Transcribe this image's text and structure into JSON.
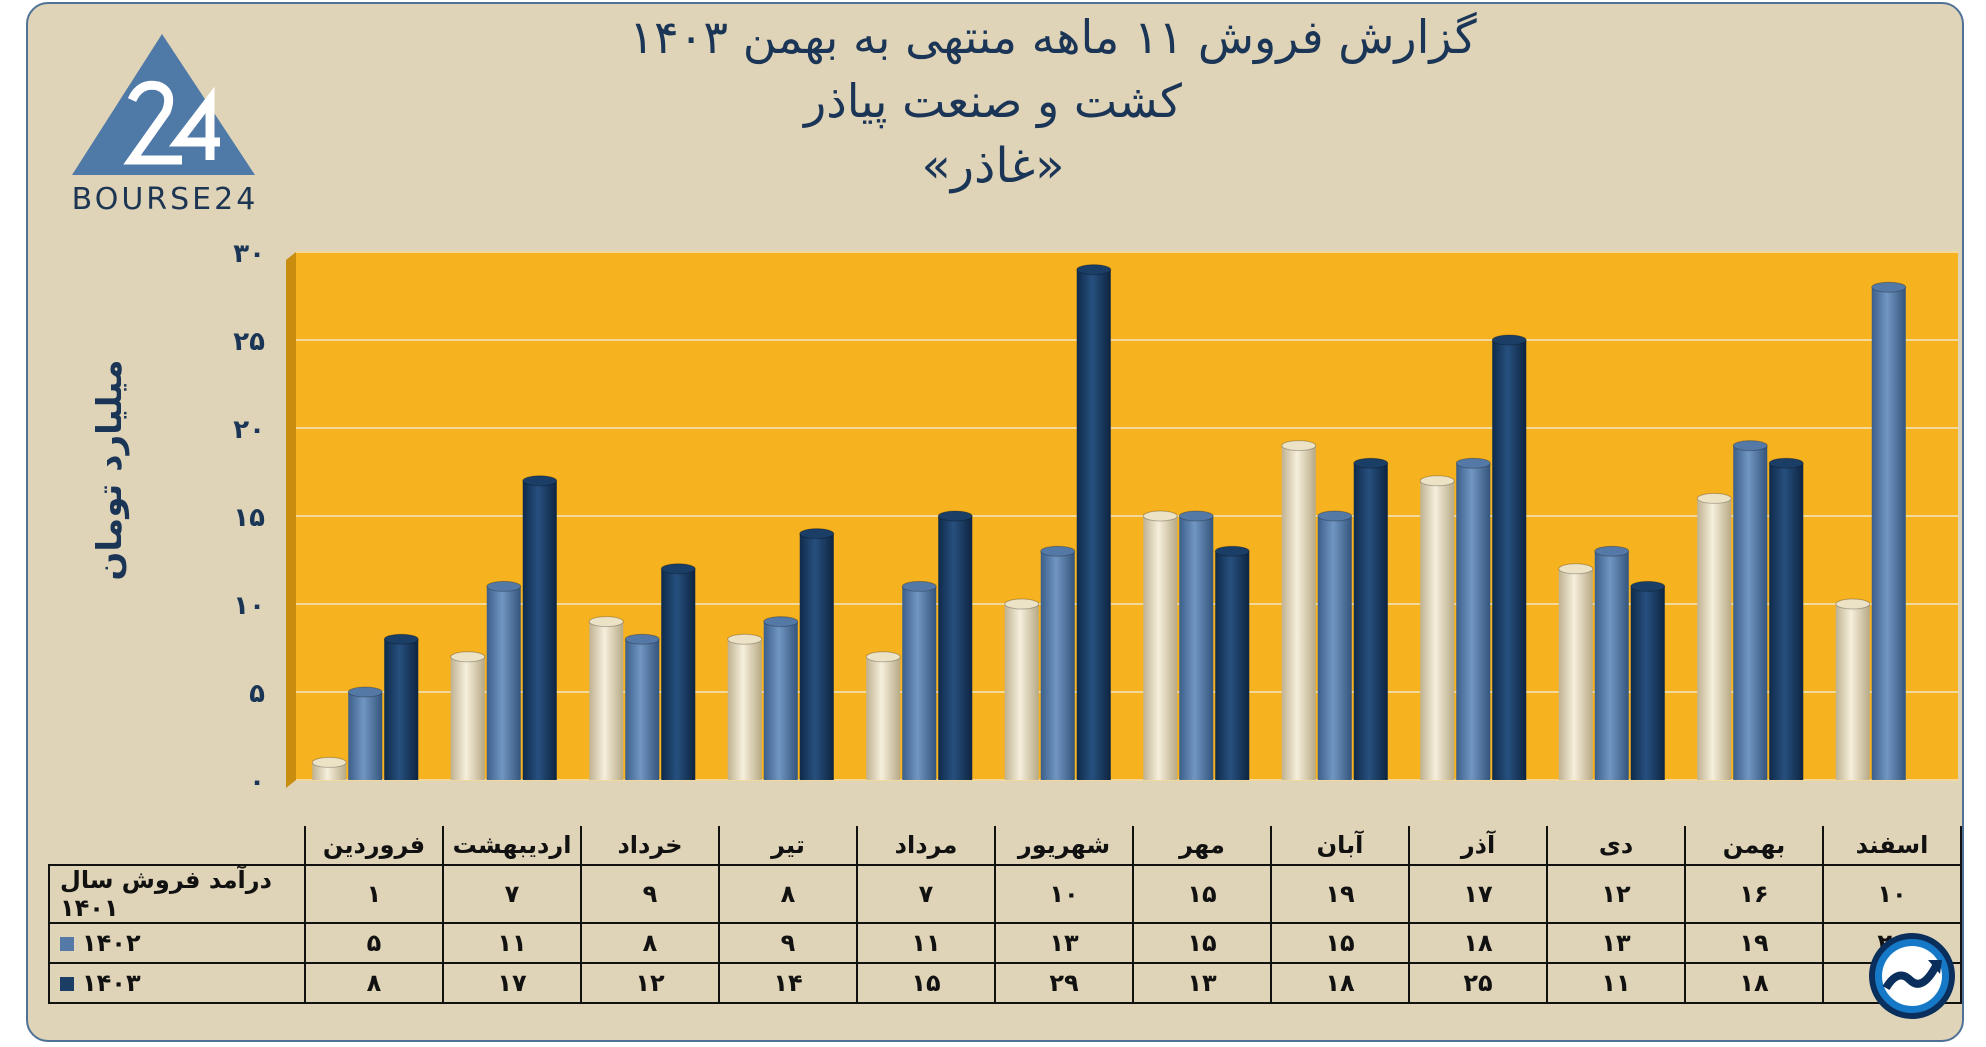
{
  "title": {
    "line1": "گزارش  فروش ۱۱ ماهه منتهی به بهمن ۱۴۰۳",
    "line2": "کشت و صنعت پیاذر",
    "line3": "«غاذر»"
  },
  "logo_text": "BOURSE24",
  "chart_data": {
    "type": "bar",
    "ylabel": "میلیارد تومان",
    "ylim": [
      0,
      30
    ],
    "yticks": [
      "۰",
      "۵",
      "۱۰",
      "۱۵",
      "۲۰",
      "۲۵",
      "۳۰"
    ],
    "ytick_values": [
      0,
      5,
      10,
      15,
      20,
      25,
      30
    ],
    "categories": [
      "فروردین",
      "اردیبهشت",
      "خرداد",
      "تیر",
      "مرداد",
      "شهریور",
      "مهر",
      "آبان",
      "آذر",
      "دی",
      "بهمن",
      "اسفند"
    ],
    "series": [
      {
        "name": "درآمد فروش سال ۱۴۰۱",
        "color": "#ece2c6",
        "values": [
          1,
          7,
          9,
          8,
          7,
          10,
          15,
          19,
          17,
          12,
          16,
          10
        ],
        "labels": [
          "۱",
          "۷",
          "۹",
          "۸",
          "۷",
          "۱۰",
          "۱۵",
          "۱۹",
          "۱۷",
          "۱۲",
          "۱۶",
          "۱۰"
        ]
      },
      {
        "name": "۱۴۰۲",
        "color": "#5479a6",
        "values": [
          5,
          11,
          8,
          9,
          11,
          13,
          15,
          15,
          18,
          13,
          19,
          28
        ],
        "labels": [
          "۵",
          "۱۱",
          "۸",
          "۹",
          "۱۱",
          "۱۳",
          "۱۵",
          "۱۵",
          "۱۸",
          "۱۳",
          "۱۹",
          "۲۸"
        ]
      },
      {
        "name": "۱۴۰۳",
        "color": "#1a3e66",
        "values": [
          8,
          17,
          12,
          14,
          15,
          29,
          13,
          18,
          25,
          11,
          18,
          null
        ],
        "labels": [
          "۸",
          "۱۷",
          "۱۲",
          "۱۴",
          "۱۵",
          "۲۹",
          "۱۳",
          "۱۸",
          "۲۵",
          "۱۱",
          "۱۸",
          ""
        ]
      }
    ],
    "plot_background": "#f7b21f",
    "grid": true
  }
}
